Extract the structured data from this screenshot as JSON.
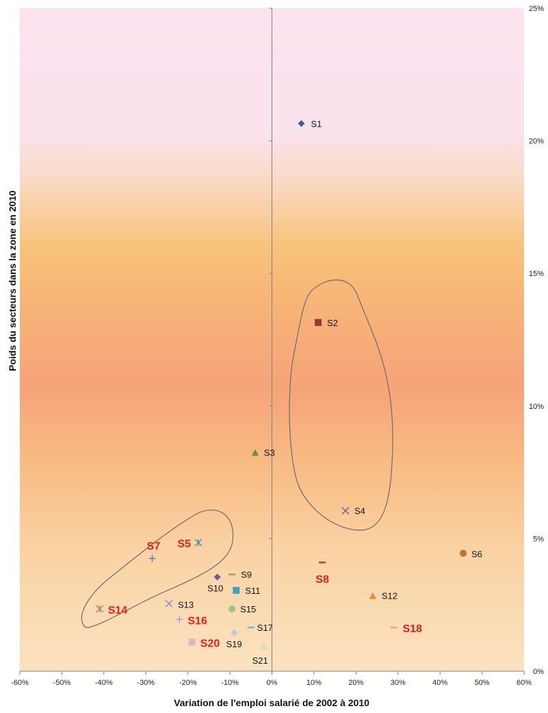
{
  "chart_data": {
    "type": "scatter",
    "xlabel": "Variation de l'emploi salarié de 2002 à 2010",
    "ylabel": "Poids du secteurs dans la zone en 2010",
    "xlim": [
      -0.6,
      0.6
    ],
    "ylim": [
      0,
      0.25
    ],
    "x_ticks": [
      "-60%",
      "-50%",
      "-40%",
      "-30%",
      "-20%",
      "-10%",
      "0%",
      "10%",
      "20%",
      "30%",
      "40%",
      "50%",
      "60%"
    ],
    "y_ticks": [
      "0%",
      "5%",
      "10%",
      "15%",
      "20%",
      "25%"
    ],
    "background": "vertical gradient pink (top) to orange (middle) to light peach (bottom)",
    "grid": false,
    "points": [
      {
        "label": "S1",
        "x": 0.07,
        "y": 0.2065,
        "marker": "diamond",
        "color": "#3d5e98",
        "highlight": false
      },
      {
        "label": "S2",
        "x": 0.11,
        "y": 0.1315,
        "marker": "square",
        "color": "#9b3535",
        "highlight": false
      },
      {
        "label": "S3",
        "x": -0.04,
        "y": 0.0825,
        "marker": "triangle",
        "color": "#6f8c3c",
        "highlight": false
      },
      {
        "label": "S4",
        "x": 0.175,
        "y": 0.0605,
        "marker": "x",
        "color": "#6e5a9a",
        "highlight": false
      },
      {
        "label": "S5",
        "x": -0.175,
        "y": 0.0485,
        "marker": "star",
        "color": "#3d8aa7",
        "highlight": true
      },
      {
        "label": "S6",
        "x": 0.455,
        "y": 0.0445,
        "marker": "circle",
        "color": "#c1712c",
        "highlight": false
      },
      {
        "label": "S7",
        "x": -0.285,
        "y": 0.0425,
        "marker": "plus",
        "color": "#4a78b2",
        "highlight": true
      },
      {
        "label": "S8",
        "x": 0.12,
        "y": 0.041,
        "marker": "dash",
        "color": "#c0392b",
        "highlight": true
      },
      {
        "label": "S9",
        "x": -0.095,
        "y": 0.0365,
        "marker": "dash",
        "color": "#8fb04a",
        "highlight": false
      },
      {
        "label": "S10",
        "x": -0.13,
        "y": 0.0355,
        "marker": "diamond",
        "color": "#70589c",
        "highlight": false
      },
      {
        "label": "S11",
        "x": -0.085,
        "y": 0.0305,
        "marker": "square",
        "color": "#3aa3bf",
        "highlight": false
      },
      {
        "label": "S12",
        "x": 0.24,
        "y": 0.0285,
        "marker": "triangle",
        "color": "#e38b3c",
        "highlight": false
      },
      {
        "label": "S13",
        "x": -0.245,
        "y": 0.0255,
        "marker": "x",
        "color": "#7a8fc5",
        "highlight": false
      },
      {
        "label": "S14",
        "x": -0.41,
        "y": 0.0235,
        "marker": "star",
        "color": "#c56e6a",
        "highlight": true
      },
      {
        "label": "S15",
        "x": -0.095,
        "y": 0.0235,
        "marker": "circle",
        "color": "#9dc77c",
        "highlight": false
      },
      {
        "label": "S16",
        "x": -0.22,
        "y": 0.0195,
        "marker": "plus",
        "color": "#9aa0d0",
        "highlight": true
      },
      {
        "label": "S17",
        "x": -0.05,
        "y": 0.0165,
        "marker": "dash",
        "color": "#6fb7d2",
        "highlight": false
      },
      {
        "label": "S18",
        "x": 0.29,
        "y": 0.0165,
        "marker": "dash",
        "color": "#f2a572",
        "highlight": true
      },
      {
        "label": "S19",
        "x": -0.09,
        "y": 0.0145,
        "marker": "diamond",
        "color": "#b9c9e6",
        "highlight": false
      },
      {
        "label": "S20",
        "x": -0.19,
        "y": 0.011,
        "marker": "square",
        "color": "#e0b4c4",
        "highlight": true
      },
      {
        "label": "S21",
        "x": -0.02,
        "y": 0.0095,
        "marker": "triangle",
        "color": "#cde2b4",
        "highlight": false
      }
    ],
    "annotations": [
      {
        "type": "freeform-loop",
        "encloses": [
          "S2",
          "S4"
        ]
      },
      {
        "type": "freeform-loop",
        "encloses": [
          "S5",
          "S7",
          "S14"
        ]
      }
    ]
  }
}
